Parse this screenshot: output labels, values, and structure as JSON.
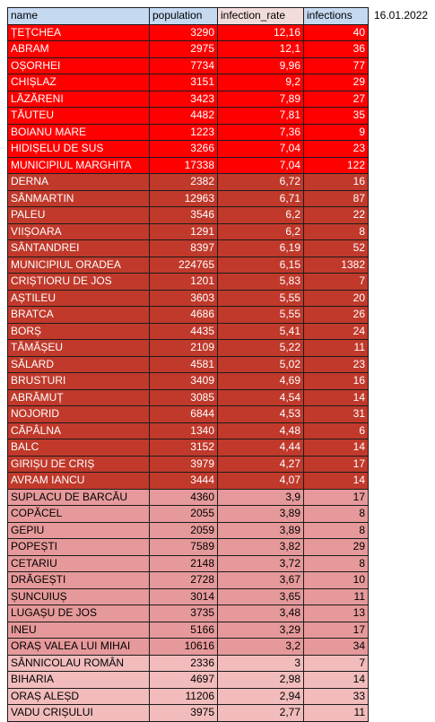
{
  "date": "16.01.2022",
  "columns": [
    "name",
    "population",
    "infection_rate",
    "infections"
  ],
  "rows": [
    {
      "name": "ȚEȚCHEA",
      "population": "3290",
      "rate": "12,16",
      "infections": "40",
      "tier": 1
    },
    {
      "name": "ABRAM",
      "population": "2975",
      "rate": "12,1",
      "infections": "36",
      "tier": 1
    },
    {
      "name": "OȘORHEI",
      "population": "7734",
      "rate": "9,96",
      "infections": "77",
      "tier": 1
    },
    {
      "name": "CHIȘLAZ",
      "population": "3151",
      "rate": "9,2",
      "infections": "29",
      "tier": 1
    },
    {
      "name": "LĂZĂRENI",
      "population": "3423",
      "rate": "7,89",
      "infections": "27",
      "tier": 1
    },
    {
      "name": "TĂUTEU",
      "population": "4482",
      "rate": "7,81",
      "infections": "35",
      "tier": 1
    },
    {
      "name": "BOIANU MARE",
      "population": "1223",
      "rate": "7,36",
      "infections": "9",
      "tier": 1
    },
    {
      "name": "HIDIȘELU DE SUS",
      "population": "3266",
      "rate": "7,04",
      "infections": "23",
      "tier": 1
    },
    {
      "name": "MUNICIPIUL MARGHITA",
      "population": "17338",
      "rate": "7,04",
      "infections": "122",
      "tier": 1
    },
    {
      "name": "DERNA",
      "population": "2382",
      "rate": "6,72",
      "infections": "16",
      "tier": 2
    },
    {
      "name": "SÂNMARTIN",
      "population": "12963",
      "rate": "6,71",
      "infections": "87",
      "tier": 2
    },
    {
      "name": "PALEU",
      "population": "3546",
      "rate": "6,2",
      "infections": "22",
      "tier": 2
    },
    {
      "name": "VIIȘOARA",
      "population": "1291",
      "rate": "6,2",
      "infections": "8",
      "tier": 2
    },
    {
      "name": "SÂNTANDREI",
      "population": "8397",
      "rate": "6,19",
      "infections": "52",
      "tier": 2
    },
    {
      "name": "MUNICIPIUL ORADEA",
      "population": "224765",
      "rate": "6,15",
      "infections": "1382",
      "tier": 2
    },
    {
      "name": "CRIȘTIORU DE JOS",
      "population": "1201",
      "rate": "5,83",
      "infections": "7",
      "tier": 2
    },
    {
      "name": "AȘTILEU",
      "population": "3603",
      "rate": "5,55",
      "infections": "20",
      "tier": 2
    },
    {
      "name": "BRATCA",
      "population": "4686",
      "rate": "5,55",
      "infections": "26",
      "tier": 2
    },
    {
      "name": "BORȘ",
      "population": "4435",
      "rate": "5,41",
      "infections": "24",
      "tier": 2
    },
    {
      "name": "TĂMĂȘEU",
      "population": "2109",
      "rate": "5,22",
      "infections": "11",
      "tier": 2
    },
    {
      "name": "SĂLARD",
      "population": "4581",
      "rate": "5,02",
      "infections": "23",
      "tier": 2
    },
    {
      "name": "BRUSTURI",
      "population": "3409",
      "rate": "4,69",
      "infections": "16",
      "tier": 2
    },
    {
      "name": "ABRĂMUȚ",
      "population": "3085",
      "rate": "4,54",
      "infections": "14",
      "tier": 2
    },
    {
      "name": "NOJORID",
      "population": "6844",
      "rate": "4,53",
      "infections": "31",
      "tier": 2
    },
    {
      "name": "CĂPÂLNA",
      "population": "1340",
      "rate": "4,48",
      "infections": "6",
      "tier": 2
    },
    {
      "name": "BALC",
      "population": "3152",
      "rate": "4,44",
      "infections": "14",
      "tier": 2
    },
    {
      "name": "GIRIȘU DE CRIȘ",
      "population": "3979",
      "rate": "4,27",
      "infections": "17",
      "tier": 2
    },
    {
      "name": "AVRAM IANCU",
      "population": "3444",
      "rate": "4,07",
      "infections": "14",
      "tier": 2
    },
    {
      "name": "SUPLACU DE BARCĂU",
      "population": "4360",
      "rate": "3,9",
      "infections": "17",
      "tier": 3
    },
    {
      "name": "COPĂCEL",
      "population": "2055",
      "rate": "3,89",
      "infections": "8",
      "tier": 3
    },
    {
      "name": "GEPIU",
      "population": "2059",
      "rate": "3,89",
      "infections": "8",
      "tier": 3
    },
    {
      "name": "POPEȘTI",
      "population": "7589",
      "rate": "3,82",
      "infections": "29",
      "tier": 3
    },
    {
      "name": "CETARIU",
      "population": "2148",
      "rate": "3,72",
      "infections": "8",
      "tier": 3
    },
    {
      "name": "DRĂGEȘTI",
      "population": "2728",
      "rate": "3,67",
      "infections": "10",
      "tier": 3
    },
    {
      "name": "ȘUNCUIUȘ",
      "population": "3014",
      "rate": "3,65",
      "infections": "11",
      "tier": 3
    },
    {
      "name": "LUGAȘU DE JOS",
      "population": "3735",
      "rate": "3,48",
      "infections": "13",
      "tier": 3
    },
    {
      "name": "INEU",
      "population": "5166",
      "rate": "3,29",
      "infections": "17",
      "tier": 3
    },
    {
      "name": "ORAȘ VALEA LUI MIHAI",
      "population": "10616",
      "rate": "3,2",
      "infections": "34",
      "tier": 3
    },
    {
      "name": "SÂNNICOLAU ROMÂN",
      "population": "2336",
      "rate": "3",
      "infections": "7",
      "tier": 4
    },
    {
      "name": "BIHARIA",
      "population": "4697",
      "rate": "2,98",
      "infections": "14",
      "tier": 4
    },
    {
      "name": "ORAȘ ALEȘD",
      "population": "11206",
      "rate": "2,94",
      "infections": "33",
      "tier": 4
    },
    {
      "name": "VADU CRIȘULUI",
      "population": "3975",
      "rate": "2,77",
      "infections": "11",
      "tier": 4
    }
  ]
}
